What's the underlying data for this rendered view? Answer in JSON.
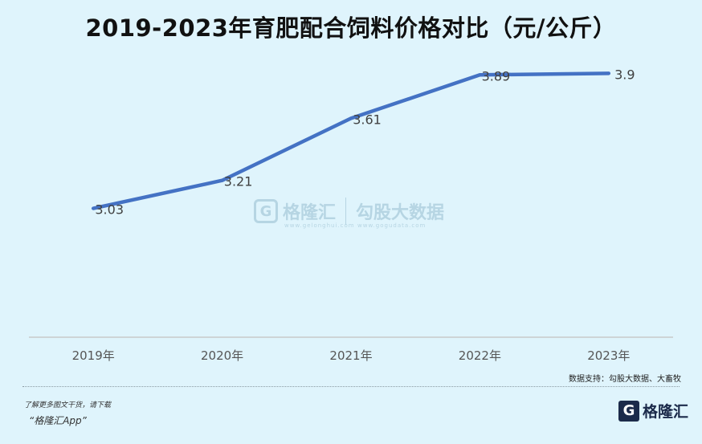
{
  "chart_data": {
    "type": "line",
    "title": "2019-2023年育肥配合饲料价格对比（元/公斤）",
    "categories": [
      "2019年",
      "2020年",
      "2021年",
      "2022年",
      "2023年"
    ],
    "series": [
      {
        "values": [
          3.03,
          3.21,
          3.61,
          3.89,
          3.9
        ]
      }
    ],
    "ylim": [
      2.2,
      4.0
    ],
    "line_color": "#4472c4",
    "grid": false
  },
  "source": "数据支持：勾股大数据、大畜牧",
  "footer": {
    "note": "了解更多图文干货，请下载",
    "app": "“格隆汇App”"
  },
  "logo": {
    "mark": "G",
    "name": "格隆汇"
  },
  "watermark": {
    "mark": "G",
    "name": "格隆汇",
    "sub1": "www.gelonghui.com",
    "name2": "勾股大数据",
    "sub2": "www.gogudata.com"
  }
}
